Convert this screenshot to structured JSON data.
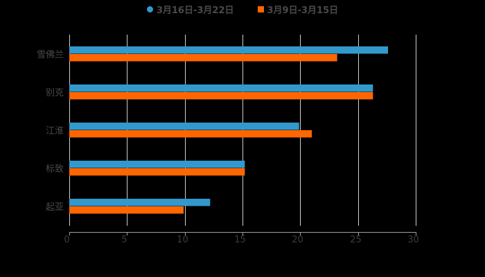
{
  "legend": {
    "items": [
      {
        "label": "3月16日-3月22日",
        "color": "#3399CC",
        "shape": "circle"
      },
      {
        "label": "3月9日-3月15日",
        "color": "#FF6600",
        "shape": "square"
      }
    ]
  },
  "colors": {
    "background": "#000000",
    "gridline": "#d0d0d0",
    "axis": "#a0a0a0",
    "text": "#4a4a4a"
  },
  "chart_data": {
    "type": "bar",
    "orientation": "horizontal",
    "title": "",
    "xlabel": "",
    "ylabel": "",
    "categories": [
      "雪佛兰",
      "别克",
      "江淮",
      "标致",
      "起亚"
    ],
    "series": [
      {
        "name": "3月16日-3月22日",
        "color": "#3399CC",
        "values": [
          27.6,
          26.3,
          19.9,
          15.2,
          12.2
        ]
      },
      {
        "name": "3月9日-3月15日",
        "color": "#FF6600",
        "values": [
          23.2,
          26.3,
          21.0,
          15.2,
          9.9
        ]
      }
    ],
    "xlim": [
      0,
      30
    ],
    "xticks": [
      0,
      5,
      10,
      15,
      20,
      25,
      30
    ],
    "grid": true,
    "legend_position": "top"
  }
}
